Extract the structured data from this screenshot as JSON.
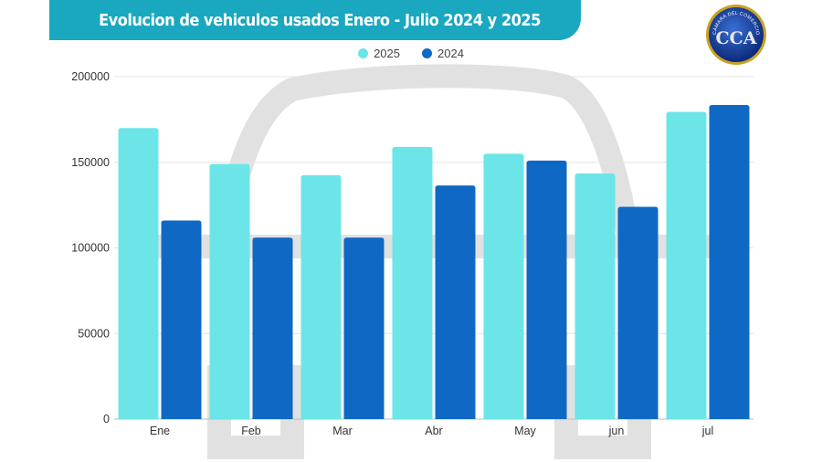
{
  "header": {
    "title": "Evolucion de vehiculos usados Enero - Julio 2024 y 2025",
    "banner_color": "#1aa7c0"
  },
  "logo": {
    "text": "CÁMARA DEL COMERCIO AUTOMOTOR",
    "monogram": "CCA"
  },
  "chart_data": {
    "type": "bar",
    "title": "Evolucion de vehiculos usados Enero - Julio 2024 y 2025",
    "xlabel": "",
    "ylabel": "",
    "categories": [
      "Ene",
      "Feb",
      "Mar",
      "Abr",
      "May",
      "jun",
      "jul"
    ],
    "series": [
      {
        "name": "2025",
        "color": "#6ce5e8",
        "values": [
          170000,
          149000,
          142500,
          159000,
          155000,
          143500,
          179500
        ]
      },
      {
        "name": "2024",
        "color": "#0f69c4",
        "values": [
          116000,
          106000,
          106000,
          136500,
          151000,
          124000,
          183500
        ]
      }
    ],
    "ylim": [
      0,
      200000
    ],
    "yticks": [
      0,
      50000,
      100000,
      150000,
      200000
    ],
    "grid": true,
    "legend": "top-center"
  }
}
